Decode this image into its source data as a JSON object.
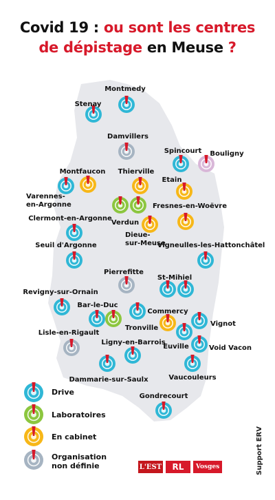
{
  "title": {
    "part1": "Covid 19 :",
    "part2": "ou sont les centres",
    "part3": "de dépistage",
    "part4": "en Meuse",
    "part5": "?"
  },
  "colors": {
    "drive": "#2fb7d6",
    "laboratoires": "#8cc63f",
    "en_cabinet": "#f7b718",
    "organisation_non_definie": "#a6b4c2",
    "bouligny": "#d9b7d8",
    "pin": "#d7192a",
    "title_accent": "#d7192a",
    "map_fill": "#e7e8ec"
  },
  "places": [
    {
      "name": "Montmedy"
    },
    {
      "name": "Stenay"
    },
    {
      "name": "Damvillers"
    },
    {
      "name": "Spincourt"
    },
    {
      "name": "Bouligny"
    },
    {
      "name": "Montfaucon"
    },
    {
      "name": "Thierville"
    },
    {
      "name": "Etain"
    },
    {
      "name1": "Varennes-",
      "name2": "en-Argonne"
    },
    {
      "name": "Fresnes-en-Woëvre"
    },
    {
      "name": "Clermont-en-Argonne"
    },
    {
      "name": "Verdun"
    },
    {
      "name1": "Dieue-",
      "name2": "sur-Meuse"
    },
    {
      "name": "Seuil d'Argonne"
    },
    {
      "name": "Vigneulles-les-Hattonchâtel"
    },
    {
      "name": "Pierrefitte"
    },
    {
      "name": "St-Mihiel"
    },
    {
      "name": "Revigny-sur-Ornain"
    },
    {
      "name": "Bar-le-Duc"
    },
    {
      "name": "Commercy"
    },
    {
      "name": "Tronville"
    },
    {
      "name": "Vignot"
    },
    {
      "name": "Lisle-en-Rigault"
    },
    {
      "name": "Ligny-en-Barrois"
    },
    {
      "name": "Euville"
    },
    {
      "name": "Void Vacon"
    },
    {
      "name": "Vaucouleurs"
    },
    {
      "name": "Dammarie-sur-Saulx"
    },
    {
      "name": "Gondrecourt"
    }
  ],
  "legend": [
    {
      "label": "Drive",
      "category": "drive"
    },
    {
      "label": "Laboratoires",
      "category": "laboratoires"
    },
    {
      "label": "En cabinet",
      "category": "en_cabinet"
    },
    {
      "label1": "Organisation",
      "label2": "non définie",
      "category": "organisation_non_definie"
    }
  ],
  "logos": [
    "L'EST",
    "RL",
    "Vosges"
  ],
  "credit": "Support ERV"
}
